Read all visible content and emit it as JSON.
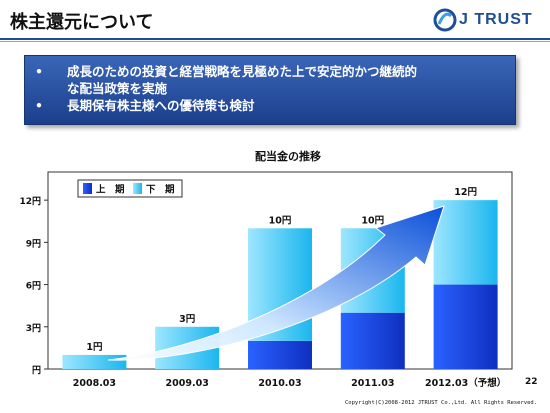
{
  "header": {
    "title": "株主還元について",
    "logo_text": "J TRUST"
  },
  "notes": {
    "items": [
      {
        "bullet": "•",
        "lines": [
          "成長のための投資と経営戦略を見極めた上で安定的かつ継続的",
          "な配当政策を実施"
        ]
      },
      {
        "bullet": "•",
        "lines": [
          "長期保有株主様への優待策も検討"
        ]
      }
    ]
  },
  "chart_data": {
    "type": "bar",
    "title": "配当金の推移",
    "categories": [
      "2008.03",
      "2009.03",
      "2010.03",
      "2011.03",
      "2012.03（予想）"
    ],
    "series": [
      {
        "name": "上　期",
        "values": [
          0,
          0,
          2,
          4,
          6
        ],
        "color": "#1a3fe0"
      },
      {
        "name": "下　期",
        "values": [
          1,
          3,
          8,
          6,
          6
        ],
        "color": "#33c6f2"
      }
    ],
    "totals_labels": [
      "1円",
      "3円",
      "10円",
      "10円",
      "12円"
    ],
    "yticks": [
      "円",
      "3円",
      "6円",
      "9円",
      "12円"
    ],
    "ylim": [
      0,
      14
    ],
    "stacked": true,
    "legend_position": "top-left",
    "annotation": "growth-arrow"
  },
  "footer": {
    "copyright": "Copyright(C)2008-2012 JTRUST Co.,Ltd. All Rights Reserved.",
    "page_number": "22"
  },
  "colors": {
    "brand": "#1f4e96",
    "panel": "#2a55a8",
    "series_upper": "#1a3fe0",
    "series_lower": "#33c6f2"
  }
}
